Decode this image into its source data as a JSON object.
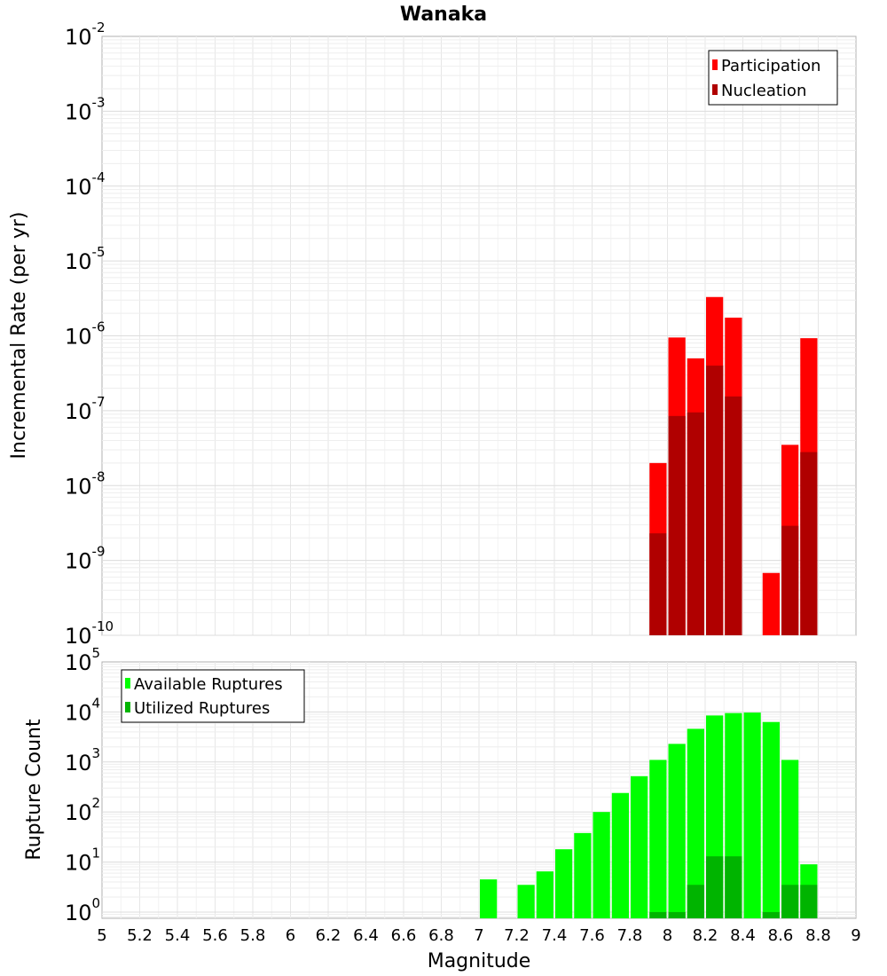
{
  "chart_data": [
    {
      "type": "bar",
      "title": "Wanaka",
      "xlabel": "",
      "ylabel": "Incremental Rate (per yr)",
      "yscale": "log",
      "ylim": [
        1e-10,
        0.01
      ],
      "xlim": [
        5,
        9
      ],
      "y_tick_exponents": [
        "-10",
        "-9",
        "-8",
        "-7",
        "-6",
        "-5",
        "-4",
        "-3",
        "-2"
      ],
      "y_tick_base": "10",
      "bar_width": 0.1,
      "legend": {
        "position": "top-right",
        "entries": [
          "Participation",
          "Nucleation"
        ]
      },
      "series": [
        {
          "name": "Participation",
          "color": "#ff0000",
          "x": [
            7.95,
            8.05,
            8.15,
            8.25,
            8.35,
            8.55,
            8.65,
            8.75
          ],
          "values": [
            2e-08,
            9.5e-07,
            5e-07,
            3.3e-06,
            1.75e-06,
            6.8e-10,
            3.5e-08,
            9.3e-07
          ]
        },
        {
          "name": "Nucleation",
          "color": "#b00000",
          "x": [
            7.95,
            8.05,
            8.15,
            8.25,
            8.35,
            8.65,
            8.75
          ],
          "values": [
            2.3e-09,
            8.5e-08,
            9.5e-08,
            4e-07,
            1.55e-07,
            2.9e-09,
            2.8e-08
          ]
        }
      ]
    },
    {
      "type": "bar",
      "title": "",
      "xlabel": "Magnitude",
      "ylabel": "Rupture Count",
      "yscale": "log",
      "ylim": [
        0.75,
        100000
      ],
      "xlim": [
        5,
        9
      ],
      "y_tick_exponents": [
        "0",
        "1",
        "2",
        "3",
        "4",
        "5"
      ],
      "y_tick_base": "10",
      "x_ticks": [
        "5",
        "5.2",
        "5.4",
        "5.6",
        "5.8",
        "6",
        "6.2",
        "6.4",
        "6.6",
        "6.8",
        "7",
        "7.2",
        "7.4",
        "7.6",
        "7.8",
        "8",
        "8.2",
        "8.4",
        "8.6",
        "8.8",
        "9"
      ],
      "bar_width": 0.1,
      "legend": {
        "position": "top-left",
        "entries": [
          "Available Ruptures",
          "Utilized Ruptures"
        ]
      },
      "series": [
        {
          "name": "Available Ruptures",
          "color": "#00ff00",
          "x": [
            7.05,
            7.25,
            7.35,
            7.45,
            7.55,
            7.65,
            7.75,
            7.85,
            7.95,
            8.05,
            8.15,
            8.25,
            8.35,
            8.45,
            8.55,
            8.65,
            8.75
          ],
          "values": [
            4.5,
            3.5,
            6.5,
            18,
            38,
            100,
            240,
            520,
            1100,
            2300,
            4600,
            8500,
            9500,
            9700,
            6300,
            1100,
            9
          ]
        },
        {
          "name": "Utilized Ruptures",
          "color": "#00b400",
          "x": [
            7.95,
            8.05,
            8.15,
            8.25,
            8.35,
            8.55,
            8.65,
            8.75
          ],
          "values": [
            1,
            1,
            3.5,
            13,
            13,
            1,
            3.5,
            3.5
          ]
        }
      ]
    }
  ]
}
